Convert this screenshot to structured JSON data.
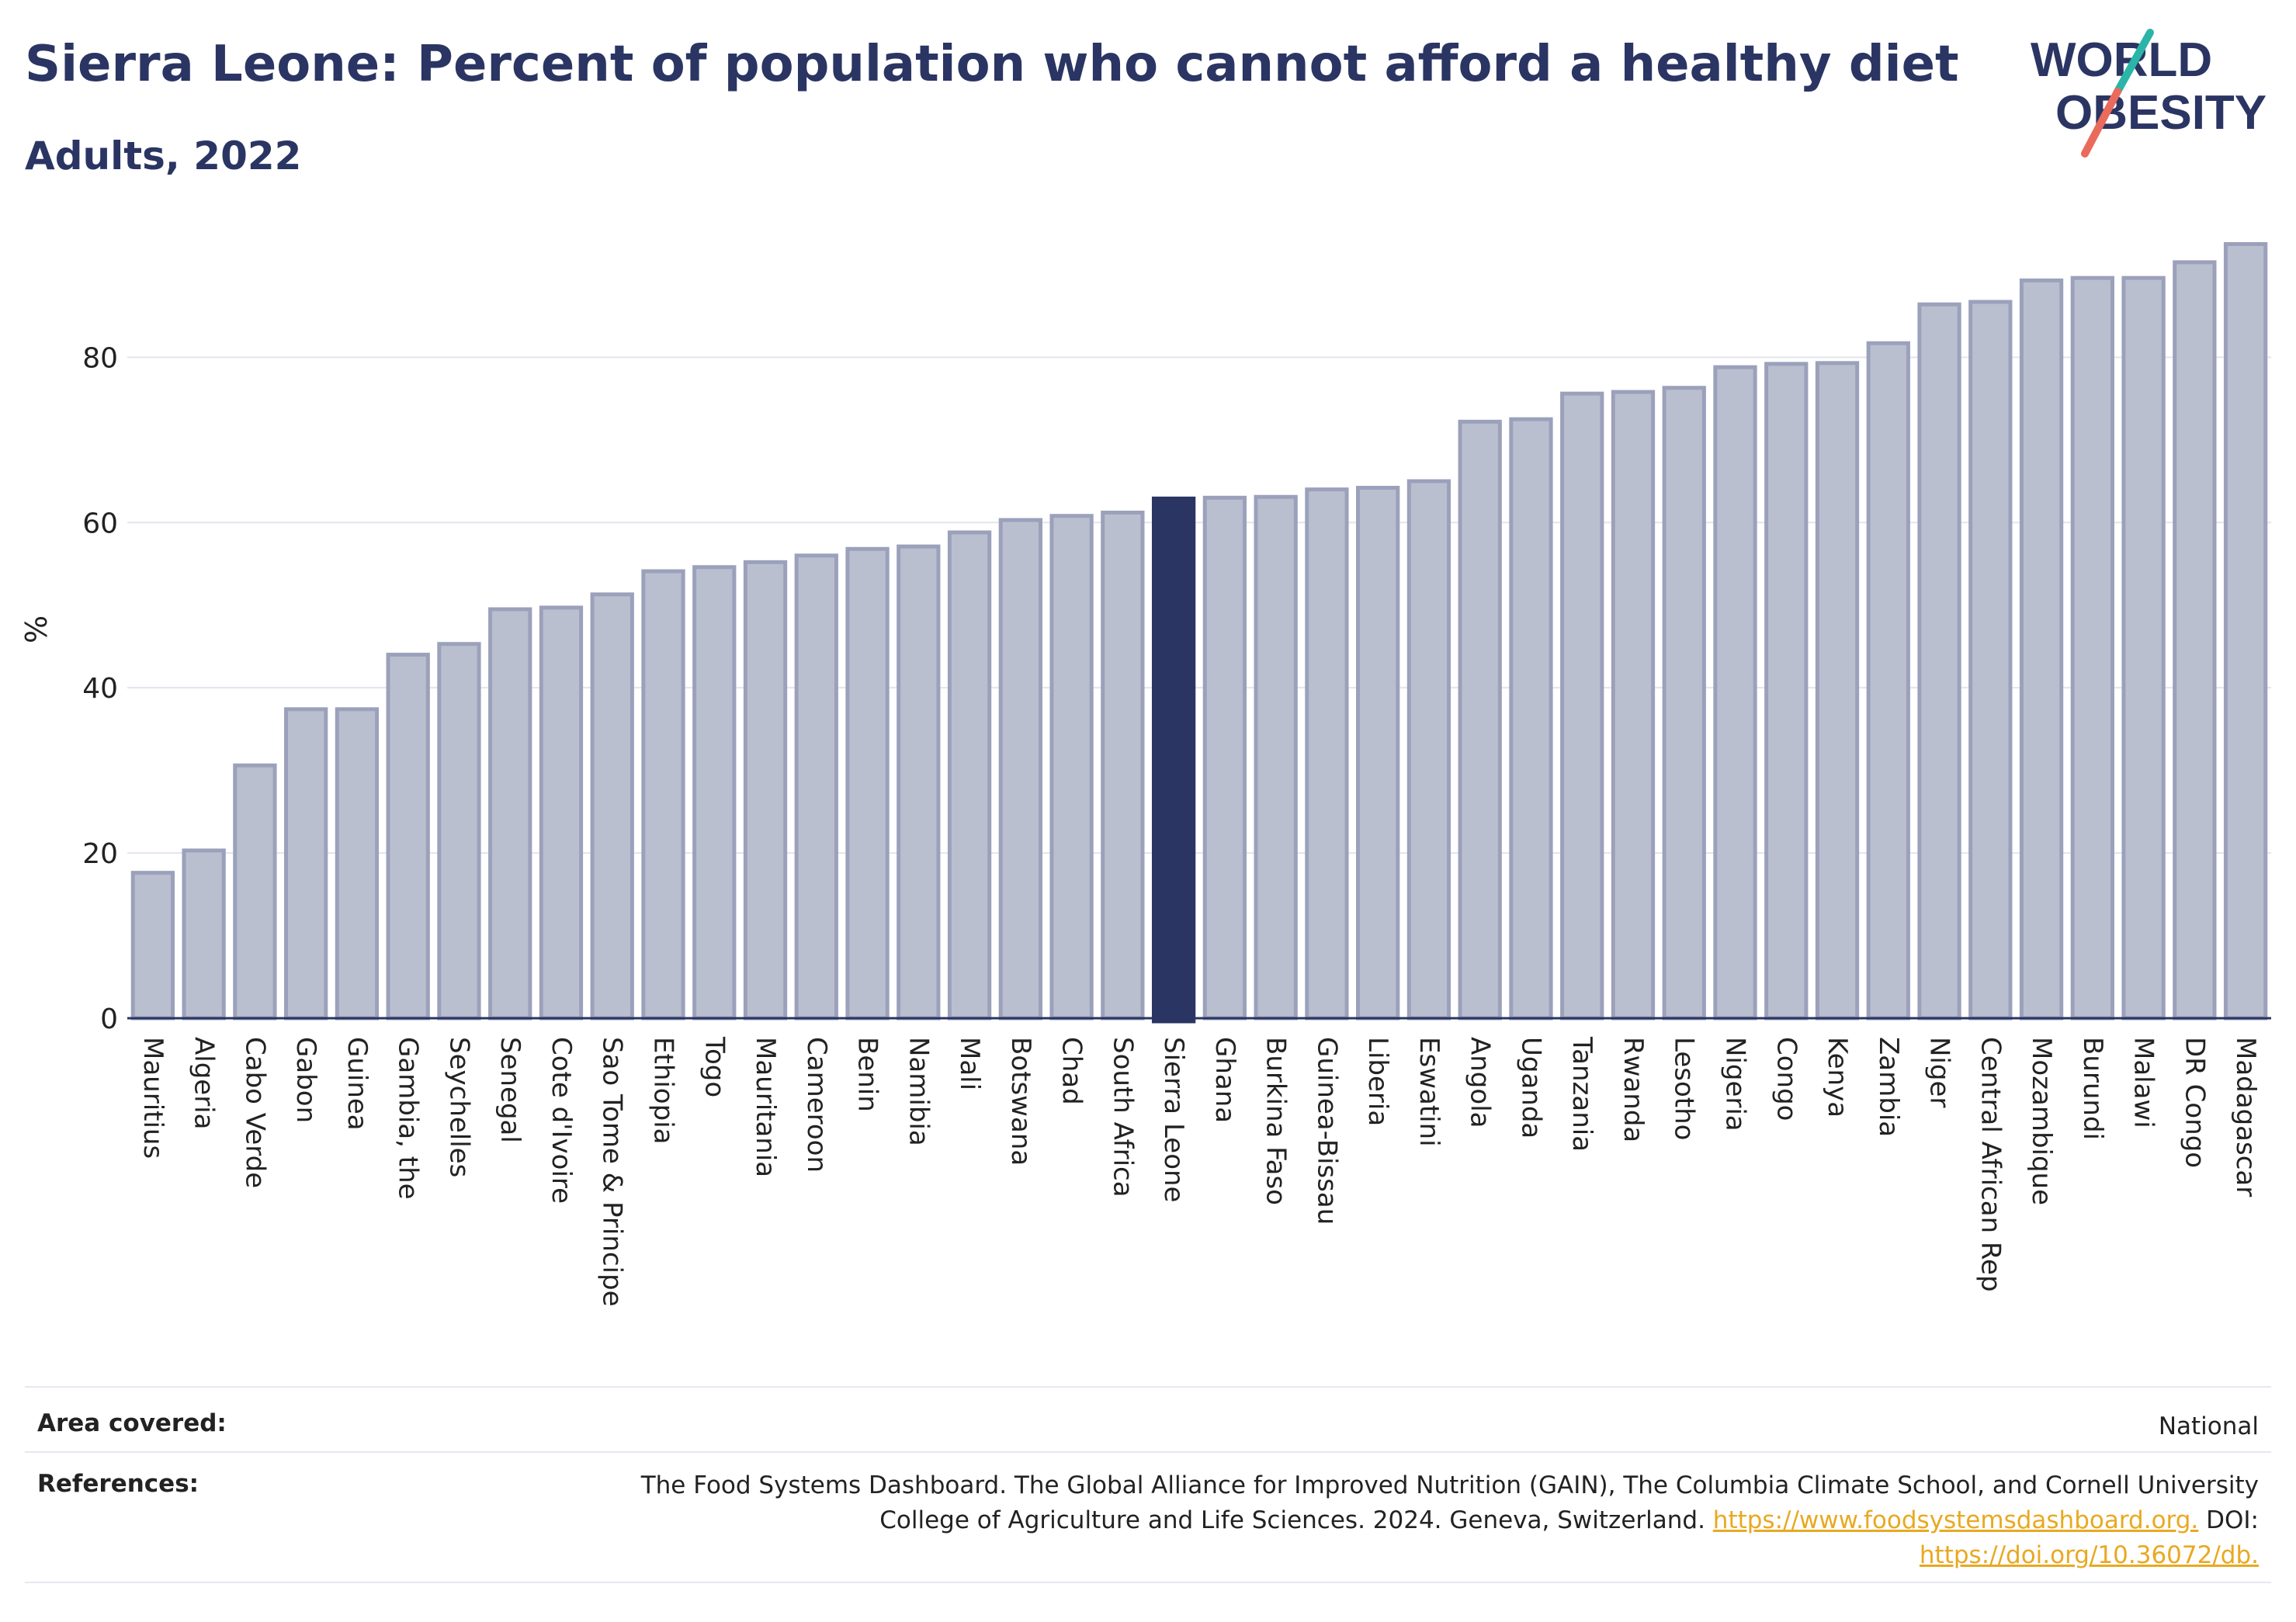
{
  "title": "Sierra Leone: Percent of population who cannot afford a healthy diet",
  "subtitle": "Adults, 2022",
  "logo": {
    "line1": "WORLD",
    "line2": "OBESITY"
  },
  "chart_data": {
    "type": "bar",
    "ylabel": "%",
    "ylim": [
      0,
      96
    ],
    "yticks": [
      0,
      20,
      40,
      60,
      80
    ],
    "grid": true,
    "highlight": "Sierra Leone",
    "colors": {
      "bar": "#babfcf",
      "bar_border": "#9ba1bb",
      "highlight": "#2b3563",
      "axis": "#2b3563",
      "grid": "#e3e5ee"
    },
    "categories": [
      "Mauritius",
      "Algeria",
      "Cabo Verde",
      "Gabon",
      "Guinea",
      "Gambia, the",
      "Seychelles",
      "Senegal",
      "Cote d'Ivoire",
      "Sao Tome & Principe",
      "Ethiopia",
      "Togo",
      "Mauritania",
      "Cameroon",
      "Benin",
      "Namibia",
      "Mali",
      "Botswana",
      "Chad",
      "South Africa",
      "Sierra Leone",
      "Ghana",
      "Burkina Faso",
      "Guinea-Bissau",
      "Liberia",
      "Eswatini",
      "Angola",
      "Uganda",
      "Tanzania",
      "Rwanda",
      "Lesotho",
      "Nigeria",
      "Congo",
      "Kenya",
      "Zambia",
      "Niger",
      "Central African Rep",
      "Mozambique",
      "Burundi",
      "Malawi",
      "DR Congo",
      "Madagascar"
    ],
    "values": [
      17.6,
      20.3,
      30.6,
      37.4,
      37.4,
      44.0,
      45.3,
      49.5,
      49.7,
      51.3,
      54.1,
      54.6,
      55.2,
      56.0,
      56.8,
      57.1,
      58.8,
      60.3,
      60.8,
      61.2,
      62.9,
      63.0,
      63.1,
      64.0,
      64.2,
      65.0,
      72.2,
      72.5,
      75.6,
      75.8,
      76.3,
      78.8,
      79.2,
      79.3,
      81.7,
      86.4,
      86.7,
      89.3,
      89.6,
      89.6,
      91.5,
      93.7
    ]
  },
  "info": {
    "area_label": "Area covered:",
    "area_value": "National",
    "references_label": "References:",
    "ref_line1": "The Food Systems Dashboard. The Global Alliance for Improved Nutrition (GAIN), The Columbia Climate School, and Cornell University",
    "ref_line2_text": "College of Agriculture and Life Sciences. 2024. Geneva, Switzerland.",
    "ref_link1": "https://www.foodsystemsdashboard.org.",
    "ref_doi": "DOI:",
    "ref_link2": "https://doi.org/10.36072/db."
  }
}
